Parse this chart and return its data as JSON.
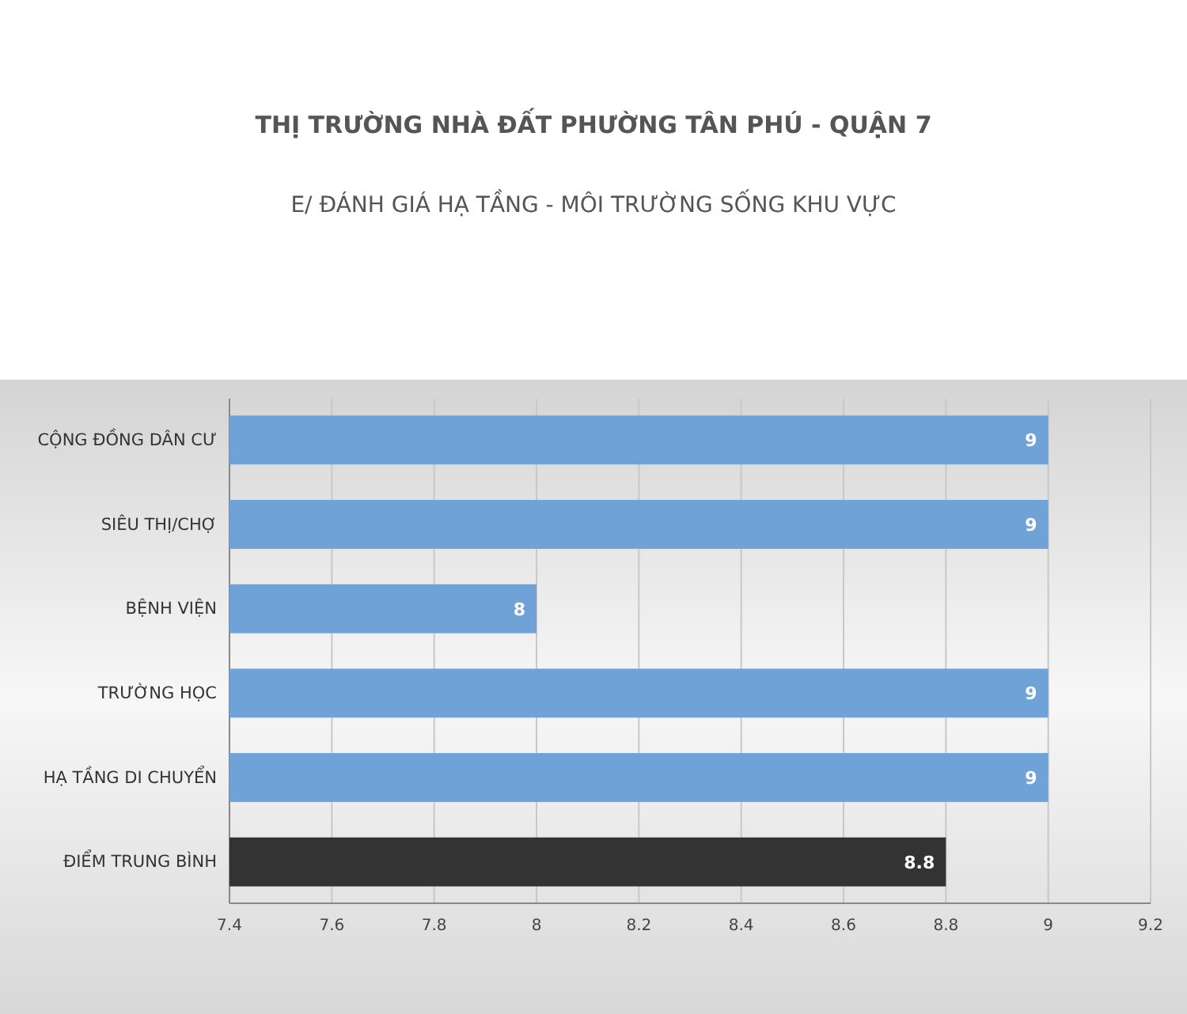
{
  "chart_data": {
    "type": "bar",
    "orientation": "horizontal",
    "title": "THỊ TRƯỜNG NHÀ ĐẤT PHƯỜNG TÂN PHÚ - QUẬN 7",
    "subtitle": "E/ ĐÁNH GIÁ HẠ TẦNG - MÔI TRƯỜNG SỐNG KHU VỰC",
    "categories": [
      "CỘNG ĐỒNG DÂN CƯ",
      "SIÊU THỊ/CHỢ",
      "BỆNH VIỆN",
      "TRƯỜNG HỌC",
      "HẠ TẦNG DI CHUYỂN",
      "ĐIỂM TRUNG BÌNH"
    ],
    "values": [
      9,
      9,
      8,
      9,
      9,
      8.8
    ],
    "colors": [
      "#6fa3d8",
      "#6fa3d8",
      "#6fa3d8",
      "#6fa3d8",
      "#6fa3d8",
      "#333333"
    ],
    "xlim": [
      7.4,
      9.2
    ],
    "xticks": [
      7.4,
      7.6,
      7.8,
      8,
      8.2,
      8.4,
      8.6,
      8.8,
      9,
      9.2
    ],
    "grid": "x",
    "data_labels": true
  }
}
